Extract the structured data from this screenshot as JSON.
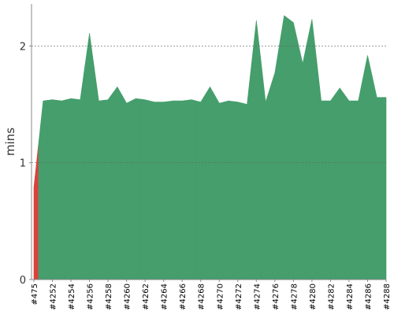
{
  "chart_data": {
    "type": "area",
    "y_label": "mins",
    "categories": [
      "#475",
      null,
      "#4252",
      null,
      "#4254",
      null,
      "#4256",
      null,
      "#4258",
      null,
      "#4260",
      null,
      "#4262",
      null,
      "#4264",
      null,
      "#4266",
      null,
      "#4268",
      null,
      "#4270",
      null,
      "#4272",
      null,
      "#4274",
      null,
      "#4276",
      null,
      "#4278",
      null,
      "#4280",
      null,
      "#4282",
      null,
      "#4284",
      null,
      "#4286",
      null,
      "#4288"
    ],
    "values": [
      0.79,
      1.53,
      1.54,
      1.53,
      1.55,
      1.54,
      2.11,
      1.53,
      1.54,
      1.65,
      1.51,
      1.55,
      1.54,
      1.52,
      1.52,
      1.53,
      1.53,
      1.54,
      1.52,
      1.65,
      1.51,
      1.53,
      1.52,
      1.5,
      2.22,
      1.52,
      1.77,
      2.26,
      2.2,
      1.85,
      2.23,
      1.53,
      1.53,
      1.64,
      1.53,
      1.53,
      1.92,
      1.56,
      1.56
    ],
    "colors": [
      "#d9423b",
      "#459e6c",
      "#459e6c",
      "#459e6c",
      "#459e6c",
      "#459e6c",
      "#459e6c",
      "#459e6c",
      "#459e6c",
      "#459e6c",
      "#459e6c",
      "#459e6c",
      "#459e6c",
      "#459e6c",
      "#459e6c",
      "#459e6c",
      "#459e6c",
      "#459e6c",
      "#459e6c",
      "#459e6c",
      "#459e6c",
      "#459e6c",
      "#459e6c",
      "#459e6c",
      "#459e6c",
      "#459e6c",
      "#459e6c",
      "#459e6c",
      "#459e6c",
      "#459e6c",
      "#459e6c",
      "#459e6c",
      "#459e6c",
      "#459e6c",
      "#459e6c",
      "#459e6c",
      "#459e6c",
      "#459e6c",
      "#459e6c"
    ],
    "ylim": [
      0,
      2.36
    ],
    "yticks": [
      0,
      1,
      2
    ],
    "grid": true
  }
}
